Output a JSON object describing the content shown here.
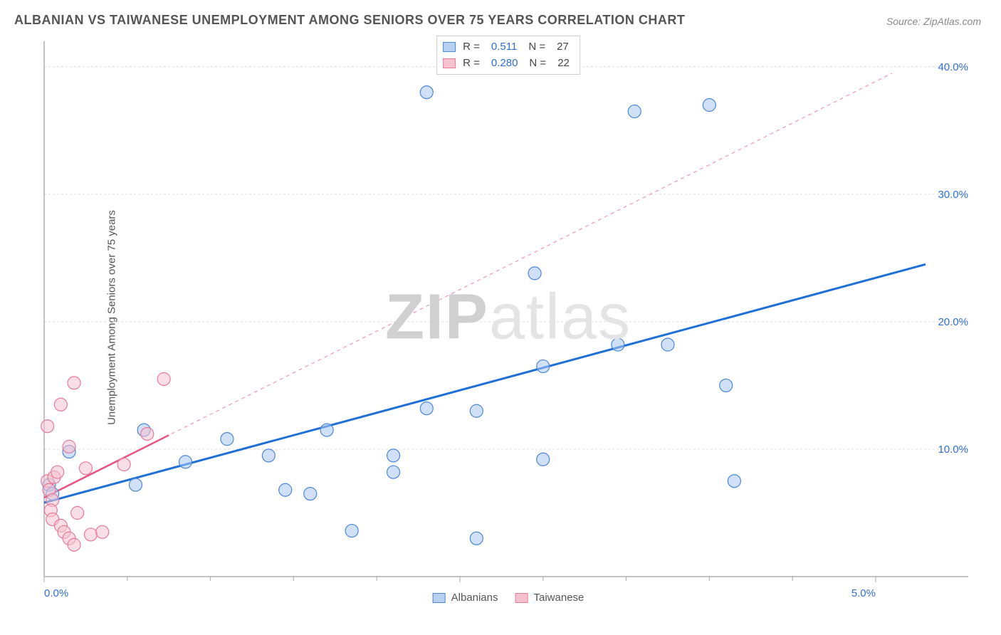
{
  "title": "ALBANIAN VS TAIWANESE UNEMPLOYMENT AMONG SENIORS OVER 75 YEARS CORRELATION CHART",
  "source": "Source: ZipAtlas.com",
  "ylabel": "Unemployment Among Seniors over 75 years",
  "watermark_a": "ZIP",
  "watermark_b": "atlas",
  "chart": {
    "type": "scatter",
    "background_color": "#ffffff",
    "grid_color": "#dddddd",
    "axis_color": "#888888",
    "label_color": "#2f6fd0",
    "xlim": [
      0,
      5.3
    ],
    "ylim": [
      0,
      42
    ],
    "x_ticks": [
      0.0,
      2.5,
      5.0
    ],
    "x_tick_labels": [
      "0.0%",
      "",
      "5.0%"
    ],
    "x_minor_ticks": [
      0.5,
      1.0,
      1.5,
      2.0,
      3.0,
      3.5,
      4.0,
      4.5
    ],
    "y_ticks": [
      10.0,
      20.0,
      30.0,
      40.0
    ],
    "y_tick_labels": [
      "10.0%",
      "20.0%",
      "30.0%",
      "40.0%"
    ],
    "marker_radius": 9,
    "marker_opacity": 0.55,
    "series": [
      {
        "name": "Albanians",
        "color_fill": "#a9c7ee",
        "color_stroke": "#4a87d8",
        "swatch_fill": "#b8d0f0",
        "swatch_stroke": "#4a87d8",
        "r_value": "0.511",
        "n_value": "27",
        "trend": {
          "x1": 0.0,
          "y1": 5.8,
          "x2": 5.3,
          "y2": 24.5,
          "solid_until_x": 5.3,
          "width": 3,
          "color": "#1e6fd8"
        },
        "points": [
          [
            0.03,
            7.2
          ],
          [
            0.05,
            6.5
          ],
          [
            0.15,
            9.8
          ],
          [
            0.6,
            11.5
          ],
          [
            0.55,
            7.2
          ],
          [
            0.85,
            9.0
          ],
          [
            1.1,
            10.8
          ],
          [
            1.35,
            9.5
          ],
          [
            1.7,
            11.5
          ],
          [
            1.45,
            6.8
          ],
          [
            1.6,
            6.5
          ],
          [
            1.85,
            3.6
          ],
          [
            2.1,
            8.2
          ],
          [
            2.1,
            9.5
          ],
          [
            2.3,
            13.2
          ],
          [
            2.3,
            38.0
          ],
          [
            2.6,
            13.0
          ],
          [
            2.6,
            3.0
          ],
          [
            2.95,
            23.8
          ],
          [
            3.0,
            16.5
          ],
          [
            3.0,
            9.2
          ],
          [
            3.45,
            18.2
          ],
          [
            3.55,
            36.5
          ],
          [
            3.75,
            18.2
          ],
          [
            4.0,
            37.0
          ],
          [
            4.1,
            15.0
          ],
          [
            4.15,
            7.5
          ]
        ]
      },
      {
        "name": "Taiwanese",
        "color_fill": "#f6c2cf",
        "color_stroke": "#e77a9a",
        "swatch_fill": "#f6c2cf",
        "swatch_stroke": "#e77a9a",
        "r_value": "0.280",
        "n_value": "22",
        "trend": {
          "x1": 0.0,
          "y1": 6.2,
          "x2": 5.1,
          "y2": 39.5,
          "solid_until_x": 0.75,
          "width": 2.5,
          "color": "#e75480"
        },
        "points": [
          [
            0.02,
            11.8
          ],
          [
            0.02,
            7.5
          ],
          [
            0.03,
            6.8
          ],
          [
            0.05,
            6.0
          ],
          [
            0.04,
            5.2
          ],
          [
            0.05,
            4.5
          ],
          [
            0.06,
            7.8
          ],
          [
            0.08,
            8.2
          ],
          [
            0.1,
            13.5
          ],
          [
            0.1,
            4.0
          ],
          [
            0.12,
            3.5
          ],
          [
            0.15,
            10.2
          ],
          [
            0.15,
            3.0
          ],
          [
            0.18,
            2.5
          ],
          [
            0.18,
            15.2
          ],
          [
            0.2,
            5.0
          ],
          [
            0.25,
            8.5
          ],
          [
            0.28,
            3.3
          ],
          [
            0.35,
            3.5
          ],
          [
            0.48,
            8.8
          ],
          [
            0.62,
            11.2
          ],
          [
            0.72,
            15.5
          ]
        ]
      }
    ]
  },
  "legend_bottom": [
    {
      "label": "Albanians",
      "fill": "#b8d0f0",
      "stroke": "#4a87d8"
    },
    {
      "label": "Taiwanese",
      "fill": "#f6c2cf",
      "stroke": "#e77a9a"
    }
  ]
}
